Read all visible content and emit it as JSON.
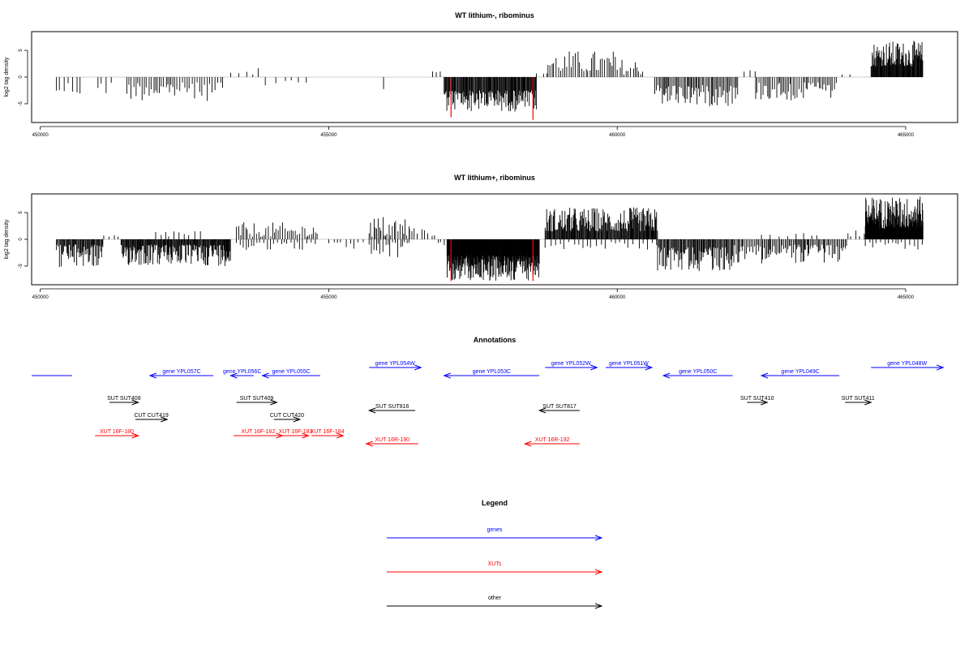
{
  "colors": {
    "genes": "#0000ff",
    "xuts": "#ff0000",
    "other": "#000000",
    "highlight": "#ff0000",
    "bars": "#000000"
  },
  "chart_data": [
    {
      "type": "bar",
      "title": "WT lithium-, ribominus",
      "ylabel": "log2 tag density",
      "xlim": [
        449850,
        465900
      ],
      "ylim": [
        -8.5,
        8.5
      ],
      "xticks": [
        450000,
        455000,
        460000,
        465000
      ],
      "xtick_labels": [
        "450000",
        "455000",
        "460000",
        "465000"
      ],
      "yticks": [
        5,
        0,
        -5
      ],
      "ytick_labels": [
        "5",
        "0",
        "-5"
      ],
      "grid": false,
      "segments": [
        {
          "start": 450280,
          "end": 450700,
          "min": 1.0,
          "max": 4.0,
          "step": 60,
          "sign": -1
        },
        {
          "start": 451000,
          "end": 451250,
          "min": 1.0,
          "max": 3.5,
          "step": 70,
          "sign": -1
        },
        {
          "start": 451500,
          "end": 453200,
          "min": 1.0,
          "max": 4.5,
          "step": 40,
          "sign": -1
        },
        {
          "start": 453300,
          "end": 453800,
          "min": 0.5,
          "max": 2.5,
          "step": 110,
          "sign": 1
        },
        {
          "start": 453900,
          "end": 454300,
          "min": 0.5,
          "max": 2.0,
          "step": 130,
          "sign": -1
        },
        {
          "start": 454350,
          "end": 454700,
          "min": 0.5,
          "max": 1.5,
          "step": 120,
          "sign": -1
        },
        {
          "start": 455950,
          "end": 456050,
          "min": 2.0,
          "max": 2.5,
          "step": 100,
          "sign": -1
        },
        {
          "start": 456800,
          "end": 457000,
          "min": 0.5,
          "max": 1.5,
          "step": 90,
          "sign": 1
        },
        {
          "start": 457000,
          "end": 458600,
          "min": 2.5,
          "max": 6.5,
          "step": 12,
          "sign": -1
        },
        {
          "start": 458600,
          "end": 458800,
          "min": 0.5,
          "max": 1.5,
          "step": 90,
          "sign": 1
        },
        {
          "start": 458800,
          "end": 460000,
          "min": 1.0,
          "max": 5.0,
          "step": 35,
          "sign": 1
        },
        {
          "start": 460000,
          "end": 460500,
          "min": 0.5,
          "max": 3.5,
          "step": 45,
          "sign": 1
        },
        {
          "start": 460650,
          "end": 462100,
          "min": 1.5,
          "max": 5.5,
          "step": 22,
          "sign": -1
        },
        {
          "start": 462200,
          "end": 462400,
          "min": 1.0,
          "max": 2.0,
          "step": 100,
          "sign": 1
        },
        {
          "start": 462400,
          "end": 463800,
          "min": 1.0,
          "max": 4.5,
          "step": 30,
          "sign": -1
        },
        {
          "start": 463900,
          "end": 464100,
          "min": 0.5,
          "max": 1.5,
          "step": 100,
          "sign": 1
        },
        {
          "start": 464400,
          "end": 465300,
          "min": 2.0,
          "max": 6.8,
          "step": 10,
          "sign": 1
        }
      ],
      "highlights": [
        {
          "x": 457120,
          "y": -7.5
        },
        {
          "x": 458540,
          "y": -8.0
        }
      ]
    },
    {
      "type": "bar",
      "title": "WT lithium+, ribominus",
      "ylabel": "log2 tag density",
      "xlim": [
        449850,
        465900
      ],
      "ylim": [
        -8.5,
        8.5
      ],
      "xticks": [
        450000,
        455000,
        460000,
        465000
      ],
      "xtick_labels": [
        "450000",
        "455000",
        "460000",
        "465000"
      ],
      "yticks": [
        5,
        0,
        -5
      ],
      "ytick_labels": [
        "5",
        "0",
        "-5"
      ],
      "grid": false,
      "segments": [
        {
          "start": 450280,
          "end": 451100,
          "min": 1.0,
          "max": 5.5,
          "step": 14,
          "sign": -1
        },
        {
          "start": 451100,
          "end": 451400,
          "min": 0.5,
          "max": 1.5,
          "step": 70,
          "sign": 1
        },
        {
          "start": 451400,
          "end": 453300,
          "min": 1.0,
          "max": 5.0,
          "step": 12,
          "sign": -1
        },
        {
          "start": 452000,
          "end": 452800,
          "min": 0.5,
          "max": 2.0,
          "step": 80,
          "sign": 1
        },
        {
          "start": 453400,
          "end": 454800,
          "min": 0.5,
          "max": 3.2,
          "step": 35,
          "sign": 1
        },
        {
          "start": 453400,
          "end": 454800,
          "min": 0.5,
          "max": 2.0,
          "step": 60,
          "sign": -1
        },
        {
          "start": 455000,
          "end": 455600,
          "min": 0.5,
          "max": 2.0,
          "step": 80,
          "sign": -1
        },
        {
          "start": 455700,
          "end": 456400,
          "min": 0.5,
          "max": 4.5,
          "step": 30,
          "sign": 1
        },
        {
          "start": 455700,
          "end": 456400,
          "min": 0.5,
          "max": 3.5,
          "step": 40,
          "sign": -1
        },
        {
          "start": 456400,
          "end": 456900,
          "min": 0.5,
          "max": 2.5,
          "step": 60,
          "sign": 1
        },
        {
          "start": 456900,
          "end": 457050,
          "min": 0.5,
          "max": 1.5,
          "step": 60,
          "sign": -1
        },
        {
          "start": 457050,
          "end": 458650,
          "min": 3.0,
          "max": 7.8,
          "step": 6,
          "sign": -1
        },
        {
          "start": 458750,
          "end": 460700,
          "min": 1.5,
          "max": 6.0,
          "step": 12,
          "sign": 1
        },
        {
          "start": 458750,
          "end": 460700,
          "min": 0.5,
          "max": 2.0,
          "step": 80,
          "sign": -1
        },
        {
          "start": 460700,
          "end": 462000,
          "min": 1.5,
          "max": 6.0,
          "step": 15,
          "sign": -1
        },
        {
          "start": 462000,
          "end": 464000,
          "min": 1.0,
          "max": 4.5,
          "step": 22,
          "sign": -1
        },
        {
          "start": 462500,
          "end": 463500,
          "min": 0.5,
          "max": 1.5,
          "step": 130,
          "sign": 1
        },
        {
          "start": 464000,
          "end": 464300,
          "min": 0.5,
          "max": 2.0,
          "step": 70,
          "sign": 1
        },
        {
          "start": 464300,
          "end": 465300,
          "min": 2.0,
          "max": 8.0,
          "step": 6,
          "sign": 1
        },
        {
          "start": 464300,
          "end": 465300,
          "min": 0.5,
          "max": 2.0,
          "step": 60,
          "sign": -1
        }
      ],
      "highlights": [
        {
          "x": 457120,
          "y": -7.8
        },
        {
          "x": 458540,
          "y": -7.8
        }
      ]
    }
  ],
  "annotations": {
    "title": "Annotations",
    "items": [
      {
        "label": "",
        "start": 449850,
        "end": 450550,
        "strand": "none",
        "type": "gene",
        "row": 0
      },
      {
        "label": "gene YPL057C",
        "start": 451900,
        "end": 453000,
        "strand": "-",
        "type": "gene",
        "row": 0
      },
      {
        "label": "gene YPL056C",
        "start": 453300,
        "end": 453700,
        "strand": "-",
        "type": "gene",
        "row": 0
      },
      {
        "label": "gene YPL055C",
        "start": 453850,
        "end": 454850,
        "strand": "-",
        "type": "gene",
        "row": 0
      },
      {
        "label": "gene YPL054W",
        "start": 455700,
        "end": 456600,
        "strand": "+",
        "type": "gene",
        "row": -1
      },
      {
        "label": "gene YPL053C",
        "start": 457000,
        "end": 458650,
        "strand": "-",
        "type": "gene",
        "row": 0
      },
      {
        "label": "gene YPL052W",
        "start": 458750,
        "end": 459650,
        "strand": "+",
        "type": "gene",
        "row": -1
      },
      {
        "label": "gene YPL051W",
        "start": 459800,
        "end": 460600,
        "strand": "+",
        "type": "gene",
        "row": -1
      },
      {
        "label": "gene YPL050C",
        "start": 460800,
        "end": 462000,
        "strand": "-",
        "type": "gene",
        "row": 0
      },
      {
        "label": "gene YPL049C",
        "start": 462500,
        "end": 463850,
        "strand": "-",
        "type": "gene",
        "row": 0
      },
      {
        "label": "gene YPL048W",
        "start": 464400,
        "end": 465650,
        "strand": "+",
        "type": "gene",
        "row": -1
      },
      {
        "label": "SUT SUT408",
        "start": 451200,
        "end": 451700,
        "strand": "+",
        "type": "other",
        "row": 2
      },
      {
        "label": "SUT SUT409",
        "start": 453400,
        "end": 454100,
        "strand": "+",
        "type": "other",
        "row": 2
      },
      {
        "label": "SUT SUT410",
        "start": 462250,
        "end": 462600,
        "strand": "+",
        "type": "other",
        "row": 2
      },
      {
        "label": "SUT SUT411",
        "start": 463950,
        "end": 464400,
        "strand": "+",
        "type": "other",
        "row": 2
      },
      {
        "label": "SUT SUT816",
        "start": 455700,
        "end": 456500,
        "strand": "-",
        "type": "other",
        "row": 3
      },
      {
        "label": "SUT SUT817",
        "start": 458650,
        "end": 459350,
        "strand": "-",
        "type": "other",
        "row": 3
      },
      {
        "label": "CUT CUT419",
        "start": 451650,
        "end": 452200,
        "strand": "+",
        "type": "other",
        "row": 4
      },
      {
        "label": "CUT CUT420",
        "start": 454050,
        "end": 454500,
        "strand": "+",
        "type": "other",
        "row": 4
      },
      {
        "label": "XUT 16F-180",
        "start": 450950,
        "end": 451700,
        "strand": "+",
        "type": "xut",
        "row": 5
      },
      {
        "label": "XUT 16F-182",
        "start": 453350,
        "end": 454200,
        "strand": "+",
        "type": "xut",
        "row": 5
      },
      {
        "label": "XUT 16F-183",
        "start": 454200,
        "end": 454650,
        "strand": "+",
        "type": "xut",
        "row": 5
      },
      {
        "label": "XUT 16F-184",
        "start": 454700,
        "end": 455250,
        "strand": "+",
        "type": "xut",
        "row": 5
      },
      {
        "label": "XUT 16R-190",
        "start": 455650,
        "end": 456550,
        "strand": "-",
        "type": "xut",
        "row": 6
      },
      {
        "label": "XUT 16R-192",
        "start": 458400,
        "end": 459350,
        "strand": "-",
        "type": "xut",
        "row": 6
      }
    ]
  },
  "legend": {
    "title": "Legend",
    "entries": [
      {
        "label": "genes",
        "type": "gene"
      },
      {
        "label": "XUTs",
        "type": "xut"
      },
      {
        "label": "other",
        "type": "other"
      }
    ]
  }
}
